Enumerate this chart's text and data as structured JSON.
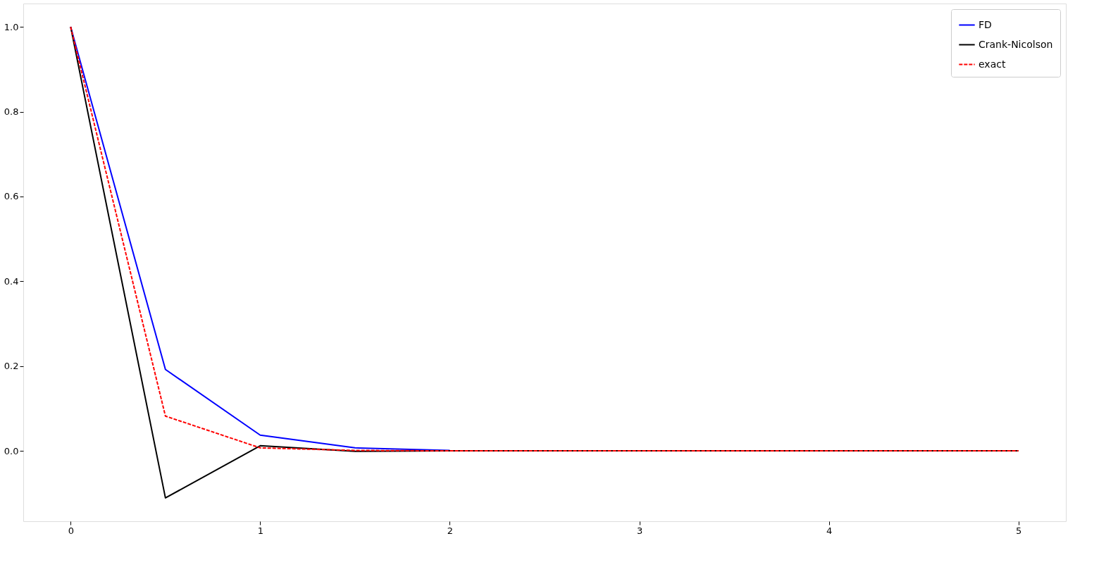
{
  "chart_data": {
    "type": "line",
    "x": [
      0,
      0.5,
      1,
      1.5,
      2,
      2.5,
      3,
      3.5,
      4,
      4.5,
      5
    ],
    "series": [
      {
        "name": "FD",
        "color": "#0000ff",
        "line_style": "solid",
        "values": [
          1,
          0.192,
          0.037,
          0.007,
          0.001,
          null,
          null,
          null,
          null,
          null,
          null
        ]
      },
      {
        "name": "Crank-Nicolson",
        "color": "#000000",
        "line_style": "solid",
        "values": [
          1,
          -0.111,
          0.012,
          -0.001,
          0,
          0,
          0,
          0,
          0,
          0,
          0
        ]
      },
      {
        "name": "exact",
        "color": "#ff0000",
        "line_style": "dashed",
        "values": [
          1,
          0.082,
          0.007,
          0.001,
          0,
          0,
          0,
          0,
          0,
          0,
          0
        ]
      }
    ],
    "xlim": [
      -0.25,
      5.25
    ],
    "xticks": [
      0,
      1,
      2,
      3,
      4,
      5
    ],
    "ylim": [
      -0.166,
      1.055
    ],
    "yticks": [
      {
        "value": 0,
        "label": "0.0"
      },
      {
        "value": 0.2,
        "label": "0.2"
      },
      {
        "value": 0.4,
        "label": "0.4"
      },
      {
        "value": 0.6,
        "label": "0.6"
      },
      {
        "value": 0.8,
        "label": "0.8"
      },
      {
        "value": 1,
        "label": "1.0"
      }
    ],
    "grid": false,
    "legend": "top right"
  }
}
